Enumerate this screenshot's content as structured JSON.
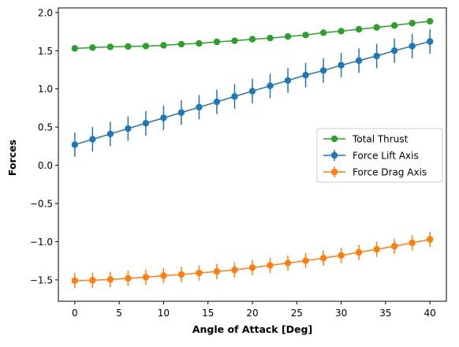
{
  "chart_data": {
    "type": "line",
    "title": "",
    "xlabel": "Angle of Attack [Deg]",
    "ylabel": "Forces",
    "xlim": [
      -1.85,
      41.85
    ],
    "ylim": [
      -1.78,
      2.06
    ],
    "xticks": [
      0,
      5,
      10,
      15,
      20,
      25,
      30,
      35,
      40
    ],
    "xtick_labels": [
      "0",
      "5",
      "10",
      "15",
      "20",
      "25",
      "30",
      "35",
      "40"
    ],
    "yticks": [
      -1.5,
      -1.0,
      -0.5,
      0.0,
      0.5,
      1.0,
      1.5,
      2.0
    ],
    "ytick_labels": [
      "−1.5",
      "−1.0",
      "−0.5",
      "0.0",
      "0.5",
      "1.0",
      "1.5",
      "2.0"
    ],
    "grid": false,
    "legend_position": "center-right",
    "x": [
      0,
      2,
      4,
      6,
      8,
      10,
      12,
      14,
      16,
      18,
      20,
      22,
      24,
      26,
      28,
      30,
      32,
      34,
      36,
      38,
      40
    ],
    "series": [
      {
        "name": "Total Thrust",
        "color": "#2ca02c",
        "values": [
          1.53,
          1.54,
          1.55,
          1.555,
          1.56,
          1.57,
          1.585,
          1.595,
          1.615,
          1.63,
          1.65,
          1.665,
          1.685,
          1.705,
          1.735,
          1.755,
          1.78,
          1.805,
          1.83,
          1.86,
          1.885
        ],
        "error": null
      },
      {
        "name": "Force Lift Axis",
        "color": "#1f77b4",
        "values": [
          0.27,
          0.34,
          0.41,
          0.48,
          0.55,
          0.62,
          0.69,
          0.76,
          0.83,
          0.9,
          0.97,
          1.04,
          1.11,
          1.18,
          1.24,
          1.31,
          1.37,
          1.43,
          1.5,
          1.56,
          1.62
        ],
        "error": 0.16
      },
      {
        "name": "Force Drag Axis",
        "color": "#ff7f0e",
        "values": [
          -1.51,
          -1.505,
          -1.495,
          -1.48,
          -1.465,
          -1.445,
          -1.43,
          -1.41,
          -1.39,
          -1.37,
          -1.34,
          -1.31,
          -1.28,
          -1.25,
          -1.215,
          -1.18,
          -1.14,
          -1.1,
          -1.06,
          -1.015,
          -0.97
        ],
        "error": 0.1
      }
    ]
  }
}
